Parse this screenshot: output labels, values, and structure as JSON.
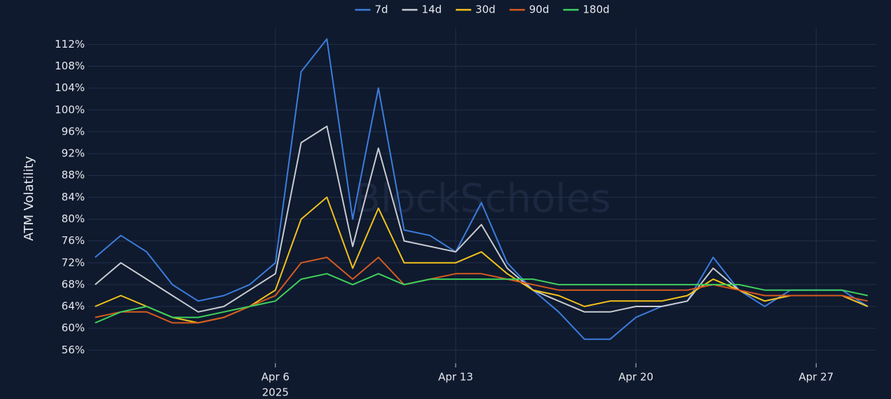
{
  "chart_data": {
    "type": "line",
    "y_label": "ATM Volatility",
    "watermark": "BlockScholes",
    "x": [
      "2025-03-30",
      "2025-03-31",
      "2025-04-01",
      "2025-04-02",
      "2025-04-03",
      "2025-04-04",
      "2025-04-05",
      "2025-04-06",
      "2025-04-07",
      "2025-04-08",
      "2025-04-09",
      "2025-04-10",
      "2025-04-11",
      "2025-04-12",
      "2025-04-13",
      "2025-04-14",
      "2025-04-15",
      "2025-04-16",
      "2025-04-17",
      "2025-04-18",
      "2025-04-19",
      "2025-04-20",
      "2025-04-21",
      "2025-04-22",
      "2025-04-23",
      "2025-04-24",
      "2025-04-25",
      "2025-04-26",
      "2025-04-27",
      "2025-04-28",
      "2025-04-29"
    ],
    "series": [
      {
        "name": "7d",
        "color": "#3b7ddd",
        "values": [
          73,
          77,
          74,
          68,
          65,
          66,
          68,
          72,
          107,
          113,
          80,
          104,
          78,
          77,
          74,
          83,
          72,
          67,
          63,
          58,
          58,
          62,
          64,
          65,
          73,
          67,
          64,
          67,
          67,
          67,
          64
        ]
      },
      {
        "name": "14d",
        "color": "#c9cbd1",
        "values": [
          68,
          72,
          69,
          66,
          63,
          64,
          67,
          70,
          94,
          97,
          75,
          93,
          76,
          75,
          74,
          79,
          71,
          67,
          65,
          63,
          63,
          64,
          64,
          65,
          71,
          67,
          65,
          66,
          66,
          66,
          64
        ]
      },
      {
        "name": "30d",
        "color": "#f2c21b",
        "values": [
          64,
          66,
          64,
          62,
          61,
          62,
          64,
          67,
          80,
          84,
          71,
          82,
          72,
          72,
          72,
          74,
          70,
          67,
          66,
          64,
          65,
          65,
          65,
          66,
          69,
          67,
          65,
          66,
          66,
          66,
          64
        ]
      },
      {
        "name": "90d",
        "color": "#d65a1f",
        "values": [
          62,
          63,
          63,
          61,
          61,
          62,
          64,
          66,
          72,
          73,
          69,
          73,
          68,
          69,
          70,
          70,
          69,
          68,
          67,
          67,
          67,
          67,
          67,
          67,
          68,
          67,
          66,
          66,
          66,
          66,
          65
        ]
      },
      {
        "name": "180d",
        "color": "#3fd05c",
        "values": [
          61,
          63,
          64,
          62,
          62,
          63,
          64,
          65,
          69,
          70,
          68,
          70,
          68,
          69,
          69,
          69,
          69,
          69,
          68,
          68,
          68,
          68,
          68,
          68,
          68,
          68,
          67,
          67,
          67,
          67,
          66
        ]
      }
    ],
    "xlim": [
      "2025-03-29T17:00",
      "2025-04-29T08:00"
    ],
    "xticks": [
      {
        "value": "2025-04-06",
        "label": "Apr 6"
      },
      {
        "value": "2025-04-13",
        "label": "Apr 13"
      },
      {
        "value": "2025-04-20",
        "label": "Apr 20"
      },
      {
        "value": "2025-04-27",
        "label": "Apr 27"
      }
    ],
    "x_year_label": "2025",
    "ylim": [
      53.6,
      115
    ],
    "yticks": [
      {
        "value": 56,
        "label": "56%"
      },
      {
        "value": 60,
        "label": "60%"
      },
      {
        "value": 64,
        "label": "64%"
      },
      {
        "value": 68,
        "label": "68%"
      },
      {
        "value": 72,
        "label": "72%"
      },
      {
        "value": 76,
        "label": "76%"
      },
      {
        "value": 80,
        "label": "80%"
      },
      {
        "value": 84,
        "label": "84%"
      },
      {
        "value": 88,
        "label": "88%"
      },
      {
        "value": 92,
        "label": "92%"
      },
      {
        "value": 96,
        "label": "96%"
      },
      {
        "value": 100,
        "label": "100%"
      },
      {
        "value": 104,
        "label": "104%"
      },
      {
        "value": 108,
        "label": "108%"
      },
      {
        "value": 112,
        "label": "112%"
      }
    ],
    "grid": true,
    "legend": "top"
  }
}
